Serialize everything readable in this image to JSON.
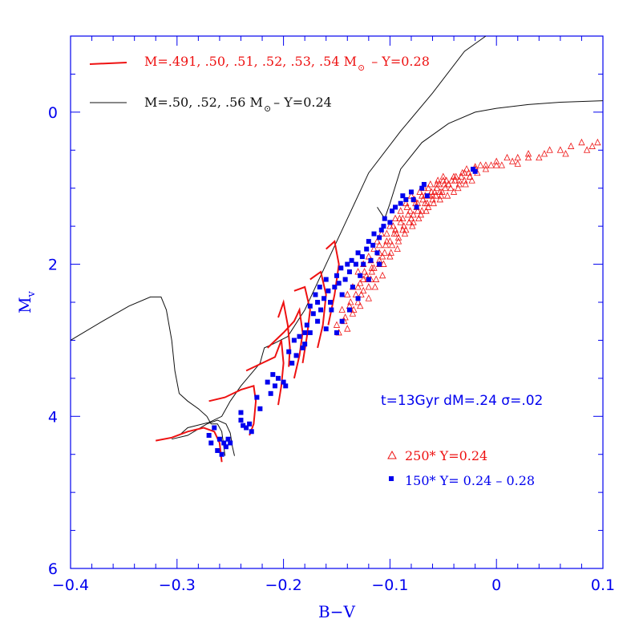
{
  "chart_data": {
    "type": "scatter",
    "title": "",
    "xlabel": "B−V",
    "ylabel": "M",
    "ylabel_sub": "v",
    "xlim": [
      -0.4,
      0.1
    ],
    "ylim": [
      6,
      -1
    ],
    "y_inverted": true,
    "grid": false,
    "colors": {
      "axis": "#0000ee",
      "red": "#ee1111",
      "black": "#111111",
      "blue": "#0000ee"
    },
    "x_ticks": [
      {
        "value": -0.4,
        "label": "−0.4"
      },
      {
        "value": -0.3,
        "label": "−0.3"
      },
      {
        "value": -0.2,
        "label": "−0.2"
      },
      {
        "value": -0.1,
        "label": "−0.1"
      },
      {
        "value": 0.0,
        "label": "0"
      },
      {
        "value": 0.1,
        "label": "0.1"
      }
    ],
    "y_ticks": [
      {
        "value": 0,
        "label": "0"
      },
      {
        "value": 2,
        "label": "2"
      },
      {
        "value": 4,
        "label": "4"
      },
      {
        "value": 6,
        "label": "6"
      }
    ],
    "legend": {
      "red_line_label": "M=.491, .50, .51, .52, .53, .54 M",
      "red_line_suffix": "–   Y=0.28",
      "black_line_label": "M=.50, .52, .56 M",
      "black_line_suffix": "– Y=0.24",
      "sun_symbol": "⊙",
      "triangle_label": "250* Y=0.24",
      "square_label": "150* Y= 0.24 – 0.28"
    },
    "annotation": "t=13Gyr dM=.24 σ=.02",
    "black_tracks": [
      [
        [
          -0.4,
          3.0
        ],
        [
          -0.37,
          2.75
        ],
        [
          -0.345,
          2.55
        ],
        [
          -0.325,
          2.43
        ],
        [
          -0.315,
          2.43
        ],
        [
          -0.31,
          2.6
        ],
        [
          -0.305,
          3.0
        ],
        [
          -0.302,
          3.4
        ],
        [
          -0.298,
          3.7
        ],
        [
          -0.29,
          3.8
        ],
        [
          -0.28,
          3.9
        ],
        [
          -0.272,
          4.0
        ],
        [
          -0.268,
          4.1
        ],
        [
          -0.262,
          4.1
        ],
        [
          -0.258,
          4.2
        ],
        [
          -0.256,
          4.4
        ],
        [
          -0.255,
          4.52
        ]
      ],
      [
        [
          -0.298,
          4.25
        ],
        [
          -0.29,
          4.15
        ],
        [
          -0.27,
          4.08
        ],
        [
          -0.258,
          4.0
        ],
        [
          -0.25,
          3.8
        ],
        [
          -0.24,
          3.6
        ],
        [
          -0.228,
          3.4
        ],
        [
          -0.222,
          3.3
        ],
        [
          -0.22,
          3.2
        ],
        [
          -0.218,
          3.1
        ],
        [
          -0.21,
          3.05
        ],
        [
          -0.196,
          2.95
        ],
        [
          -0.18,
          2.6
        ],
        [
          -0.16,
          2.0
        ],
        [
          -0.14,
          1.4
        ],
        [
          -0.12,
          0.8
        ],
        [
          -0.09,
          0.25
        ],
        [
          -0.06,
          -0.25
        ],
        [
          -0.03,
          -0.8
        ],
        [
          -0.01,
          -1.0
        ]
      ],
      [
        [
          -0.305,
          4.3
        ],
        [
          -0.29,
          4.25
        ],
        [
          -0.272,
          4.1
        ],
        [
          -0.262,
          4.05
        ],
        [
          -0.254,
          4.1
        ],
        [
          -0.25,
          4.22
        ],
        [
          -0.248,
          4.4
        ],
        [
          -0.246,
          4.52
        ]
      ],
      [
        [
          -0.112,
          1.25
        ],
        [
          -0.105,
          1.4
        ],
        [
          -0.1,
          1.2
        ],
        [
          -0.09,
          0.75
        ],
        [
          -0.07,
          0.4
        ],
        [
          -0.045,
          0.15
        ],
        [
          -0.02,
          0.0
        ],
        [
          0.0,
          -0.05
        ],
        [
          0.03,
          -0.1
        ],
        [
          0.06,
          -0.13
        ],
        [
          0.1,
          -0.15
        ]
      ]
    ],
    "red_tracks": [
      [
        [
          -0.32,
          4.32
        ],
        [
          -0.305,
          4.28
        ],
        [
          -0.29,
          4.2
        ],
        [
          -0.275,
          4.15
        ],
        [
          -0.265,
          4.2
        ],
        [
          -0.26,
          4.35
        ],
        [
          -0.258,
          4.6
        ]
      ],
      [
        [
          -0.27,
          3.8
        ],
        [
          -0.255,
          3.75
        ],
        [
          -0.24,
          3.65
        ],
        [
          -0.228,
          3.6
        ],
        [
          -0.226,
          3.8
        ],
        [
          -0.228,
          4.1
        ],
        [
          -0.232,
          4.25
        ]
      ],
      [
        [
          -0.235,
          3.4
        ],
        [
          -0.22,
          3.3
        ],
        [
          -0.208,
          3.22
        ],
        [
          -0.202,
          3.0
        ],
        [
          -0.2,
          3.3
        ],
        [
          -0.202,
          3.6
        ],
        [
          -0.205,
          3.85
        ]
      ],
      [
        [
          -0.215,
          3.1
        ],
        [
          -0.2,
          2.9
        ],
        [
          -0.19,
          2.75
        ],
        [
          -0.185,
          2.6
        ],
        [
          -0.182,
          2.9
        ],
        [
          -0.185,
          3.2
        ],
        [
          -0.19,
          3.5
        ]
      ],
      [
        [
          -0.205,
          2.7
        ],
        [
          -0.2,
          2.5
        ],
        [
          -0.196,
          2.8
        ],
        [
          -0.194,
          3.1
        ],
        [
          -0.195,
          3.35
        ]
      ],
      [
        [
          -0.19,
          2.35
        ],
        [
          -0.18,
          2.3
        ],
        [
          -0.175,
          2.6
        ],
        [
          -0.178,
          2.95
        ],
        [
          -0.182,
          3.3
        ]
      ],
      [
        [
          -0.175,
          2.2
        ],
        [
          -0.165,
          2.1
        ],
        [
          -0.16,
          2.4
        ],
        [
          -0.163,
          2.8
        ],
        [
          -0.168,
          3.1
        ]
      ],
      [
        [
          -0.16,
          1.8
        ],
        [
          -0.152,
          1.7
        ],
        [
          -0.148,
          2.0
        ],
        [
          -0.152,
          2.4
        ],
        [
          -0.158,
          2.8
        ]
      ]
    ],
    "triangles": [
      [
        -0.13,
        2.1
      ],
      [
        -0.125,
        2.0
      ],
      [
        -0.12,
        1.9
      ],
      [
        -0.118,
        2.2
      ],
      [
        -0.115,
        1.8
      ],
      [
        -0.112,
        1.7
      ],
      [
        -0.11,
        2.0
      ],
      [
        -0.108,
        1.6
      ],
      [
        -0.105,
        1.85
      ],
      [
        -0.1,
        1.5
      ],
      [
        -0.098,
        1.75
      ],
      [
        -0.095,
        1.4
      ],
      [
        -0.092,
        1.65
      ],
      [
        -0.09,
        1.3
      ],
      [
        -0.088,
        1.55
      ],
      [
        -0.085,
        1.2
      ],
      [
        -0.082,
        1.45
      ],
      [
        -0.08,
        1.1
      ],
      [
        -0.078,
        1.35
      ],
      [
        -0.075,
        1.25
      ],
      [
        -0.072,
        1.05
      ],
      [
        -0.07,
        1.3
      ],
      [
        -0.068,
        1.0
      ],
      [
        -0.065,
        1.2
      ],
      [
        -0.062,
        0.95
      ],
      [
        -0.06,
        1.15
      ],
      [
        -0.058,
        1.05
      ],
      [
        -0.055,
        0.9
      ],
      [
        -0.052,
        1.1
      ],
      [
        -0.05,
        0.85
      ],
      [
        -0.048,
        1.0
      ],
      [
        -0.045,
        0.95
      ],
      [
        -0.042,
        0.9
      ],
      [
        -0.04,
        1.05
      ],
      [
        -0.038,
        0.85
      ],
      [
        -0.035,
        0.95
      ],
      [
        -0.032,
        0.8
      ],
      [
        -0.03,
        0.9
      ],
      [
        -0.028,
        0.75
      ],
      [
        -0.025,
        0.85
      ],
      [
        -0.02,
        0.75
      ],
      [
        -0.018,
        0.8
      ],
      [
        -0.015,
        0.7
      ],
      [
        -0.01,
        0.75
      ],
      [
        -0.005,
        0.7
      ],
      [
        0.0,
        0.65
      ],
      [
        0.005,
        0.7
      ],
      [
        0.01,
        0.6
      ],
      [
        0.015,
        0.65
      ],
      [
        0.02,
        0.6
      ],
      [
        0.03,
        0.55
      ],
      [
        0.04,
        0.6
      ],
      [
        0.05,
        0.5
      ],
      [
        0.06,
        0.5
      ],
      [
        0.07,
        0.45
      ],
      [
        0.08,
        0.4
      ],
      [
        0.09,
        0.45
      ],
      [
        0.095,
        0.4
      ],
      [
        -0.14,
        2.4
      ],
      [
        -0.135,
        2.3
      ],
      [
        -0.13,
        2.5
      ],
      [
        -0.128,
        2.25
      ],
      [
        -0.125,
        2.35
      ],
      [
        -0.122,
        2.15
      ],
      [
        -0.12,
        2.45
      ],
      [
        -0.117,
        2.05
      ],
      [
        -0.114,
        2.3
      ],
      [
        -0.11,
        1.95
      ],
      [
        -0.107,
        2.15
      ],
      [
        -0.104,
        1.75
      ],
      [
        -0.1,
        1.9
      ],
      [
        -0.096,
        1.6
      ],
      [
        -0.093,
        1.8
      ],
      [
        -0.09,
        1.45
      ],
      [
        -0.086,
        1.6
      ],
      [
        -0.083,
        1.35
      ],
      [
        -0.079,
        1.5
      ],
      [
        -0.076,
        1.2
      ],
      [
        -0.073,
        1.4
      ],
      [
        -0.069,
        1.15
      ],
      [
        -0.066,
        1.3
      ],
      [
        -0.063,
        1.1
      ],
      [
        -0.059,
        1.2
      ],
      [
        -0.056,
        1.0
      ],
      [
        -0.053,
        1.15
      ],
      [
        -0.049,
        0.95
      ],
      [
        -0.046,
        1.1
      ],
      [
        -0.043,
        1.0
      ],
      [
        -0.039,
        0.9
      ],
      [
        -0.036,
        1.0
      ],
      [
        -0.033,
        0.85
      ],
      [
        -0.029,
        0.95
      ],
      [
        -0.026,
        0.8
      ],
      [
        -0.023,
        0.9
      ],
      [
        -0.145,
        2.6
      ],
      [
        -0.142,
        2.7
      ],
      [
        -0.138,
        2.55
      ],
      [
        -0.135,
        2.65
      ],
      [
        -0.132,
        2.4
      ],
      [
        -0.128,
        2.55
      ],
      [
        -0.125,
        2.2
      ],
      [
        -0.12,
        2.3
      ],
      [
        -0.117,
        2.1
      ],
      [
        -0.113,
        2.2
      ],
      [
        -0.11,
        1.85
      ],
      [
        -0.106,
        2.0
      ],
      [
        -0.103,
        1.7
      ],
      [
        -0.099,
        1.85
      ],
      [
        -0.095,
        1.55
      ],
      [
        -0.092,
        1.7
      ],
      [
        -0.088,
        1.4
      ],
      [
        -0.085,
        1.55
      ],
      [
        -0.081,
        1.3
      ],
      [
        -0.078,
        1.45
      ],
      [
        -0.074,
        1.2
      ],
      [
        -0.071,
        1.35
      ],
      [
        -0.067,
        1.1
      ],
      [
        -0.064,
        1.25
      ],
      [
        -0.061,
        1.05
      ],
      [
        -0.057,
        1.1
      ],
      [
        -0.054,
        0.95
      ],
      [
        -0.051,
        1.05
      ],
      [
        -0.047,
        0.9
      ],
      [
        -0.15,
        2.8
      ],
      [
        -0.148,
        2.9
      ],
      [
        -0.143,
        2.75
      ],
      [
        -0.14,
        2.85
      ],
      [
        -0.137,
        2.5
      ],
      [
        -0.134,
        2.6
      ],
      [
        -0.13,
        2.3
      ],
      [
        -0.127,
        2.4
      ],
      [
        -0.124,
        2.1
      ],
      [
        -0.121,
        2.2
      ],
      [
        -0.118,
        1.95
      ],
      [
        -0.115,
        2.05
      ],
      [
        -0.11,
        1.75
      ],
      [
        -0.107,
        1.9
      ],
      [
        -0.103,
        1.6
      ],
      [
        -0.1,
        1.7
      ],
      [
        -0.097,
        1.5
      ],
      [
        -0.094,
        1.6
      ],
      [
        -0.091,
        1.4
      ],
      [
        -0.087,
        1.5
      ],
      [
        -0.084,
        1.25
      ],
      [
        -0.08,
        1.4
      ],
      [
        -0.077,
        1.15
      ],
      [
        -0.074,
        1.3
      ],
      [
        -0.07,
        1.1
      ],
      [
        -0.067,
        1.2
      ],
      [
        -0.064,
        1.0
      ],
      [
        -0.06,
        1.1
      ],
      [
        -0.056,
        0.95
      ],
      [
        -0.053,
        1.05
      ],
      [
        -0.05,
        0.9
      ],
      [
        -0.045,
        0.95
      ],
      [
        -0.04,
        0.85
      ],
      [
        -0.035,
        0.9
      ],
      [
        -0.03,
        0.8
      ],
      [
        -0.025,
        0.85
      ],
      [
        -0.02,
        0.72
      ],
      [
        -0.01,
        0.7
      ],
      [
        0.0,
        0.7
      ],
      [
        0.02,
        0.68
      ],
      [
        0.03,
        0.6
      ],
      [
        0.045,
        0.55
      ],
      [
        0.065,
        0.55
      ],
      [
        0.085,
        0.5
      ]
    ],
    "squares": [
      [
        -0.27,
        4.25
      ],
      [
        -0.268,
        4.35
      ],
      [
        -0.265,
        4.15
      ],
      [
        -0.262,
        4.45
      ],
      [
        -0.26,
        4.3
      ],
      [
        -0.258,
        4.5
      ],
      [
        -0.256,
        4.35
      ],
      [
        -0.254,
        4.4
      ],
      [
        -0.252,
        4.3
      ],
      [
        -0.25,
        4.35
      ],
      [
        -0.24,
        3.95
      ],
      [
        -0.24,
        4.05
      ],
      [
        -0.238,
        4.12
      ],
      [
        -0.235,
        4.15
      ],
      [
        -0.232,
        4.1
      ],
      [
        -0.23,
        4.2
      ],
      [
        -0.225,
        3.75
      ],
      [
        -0.222,
        3.9
      ],
      [
        -0.215,
        3.55
      ],
      [
        -0.212,
        3.7
      ],
      [
        -0.21,
        3.45
      ],
      [
        -0.208,
        3.6
      ],
      [
        -0.205,
        3.5
      ],
      [
        -0.2,
        3.55
      ],
      [
        -0.198,
        3.6
      ],
      [
        -0.195,
        3.15
      ],
      [
        -0.192,
        3.3
      ],
      [
        -0.19,
        3.0
      ],
      [
        -0.188,
        3.2
      ],
      [
        -0.185,
        2.95
      ],
      [
        -0.182,
        3.1
      ],
      [
        -0.18,
        2.9
      ],
      [
        -0.178,
        2.8
      ],
      [
        -0.175,
        2.55
      ],
      [
        -0.172,
        2.65
      ],
      [
        -0.17,
        2.4
      ],
      [
        -0.168,
        2.5
      ],
      [
        -0.166,
        2.3
      ],
      [
        -0.165,
        2.6
      ],
      [
        -0.162,
        2.45
      ],
      [
        -0.16,
        2.2
      ],
      [
        -0.158,
        2.35
      ],
      [
        -0.156,
        2.5
      ],
      [
        -0.155,
        2.6
      ],
      [
        -0.152,
        2.3
      ],
      [
        -0.15,
        2.15
      ],
      [
        -0.148,
        2.25
      ],
      [
        -0.146,
        2.05
      ],
      [
        -0.145,
        2.4
      ],
      [
        -0.142,
        2.2
      ],
      [
        -0.14,
        2.0
      ],
      [
        -0.138,
        2.1
      ],
      [
        -0.136,
        1.95
      ],
      [
        -0.135,
        2.3
      ],
      [
        -0.132,
        2.0
      ],
      [
        -0.13,
        1.85
      ],
      [
        -0.128,
        2.15
      ],
      [
        -0.126,
        1.9
      ],
      [
        -0.125,
        2.0
      ],
      [
        -0.122,
        1.8
      ],
      [
        -0.12,
        1.7
      ],
      [
        -0.118,
        1.95
      ],
      [
        -0.116,
        1.75
      ],
      [
        -0.115,
        1.6
      ],
      [
        -0.112,
        1.85
      ],
      [
        -0.11,
        1.65
      ],
      [
        -0.108,
        1.55
      ],
      [
        -0.106,
        1.5
      ],
      [
        -0.105,
        1.4
      ],
      [
        -0.1,
        1.45
      ],
      [
        -0.098,
        1.3
      ],
      [
        -0.095,
        1.25
      ],
      [
        -0.09,
        1.2
      ],
      [
        -0.088,
        1.1
      ],
      [
        -0.085,
        1.15
      ],
      [
        -0.08,
        1.05
      ],
      [
        -0.078,
        1.15
      ],
      [
        -0.075,
        1.25
      ],
      [
        -0.07,
        1.0
      ],
      [
        -0.068,
        0.95
      ],
      [
        -0.065,
        1.1
      ],
      [
        -0.022,
        0.75
      ],
      [
        -0.02,
        0.78
      ],
      [
        -0.18,
        3.05
      ],
      [
        -0.175,
        2.9
      ],
      [
        -0.168,
        2.75
      ],
      [
        -0.16,
        2.85
      ],
      [
        -0.15,
        2.9
      ],
      [
        -0.145,
        2.75
      ],
      [
        -0.138,
        2.6
      ],
      [
        -0.13,
        2.45
      ],
      [
        -0.12,
        2.2
      ],
      [
        -0.11,
        2.0
      ]
    ]
  }
}
